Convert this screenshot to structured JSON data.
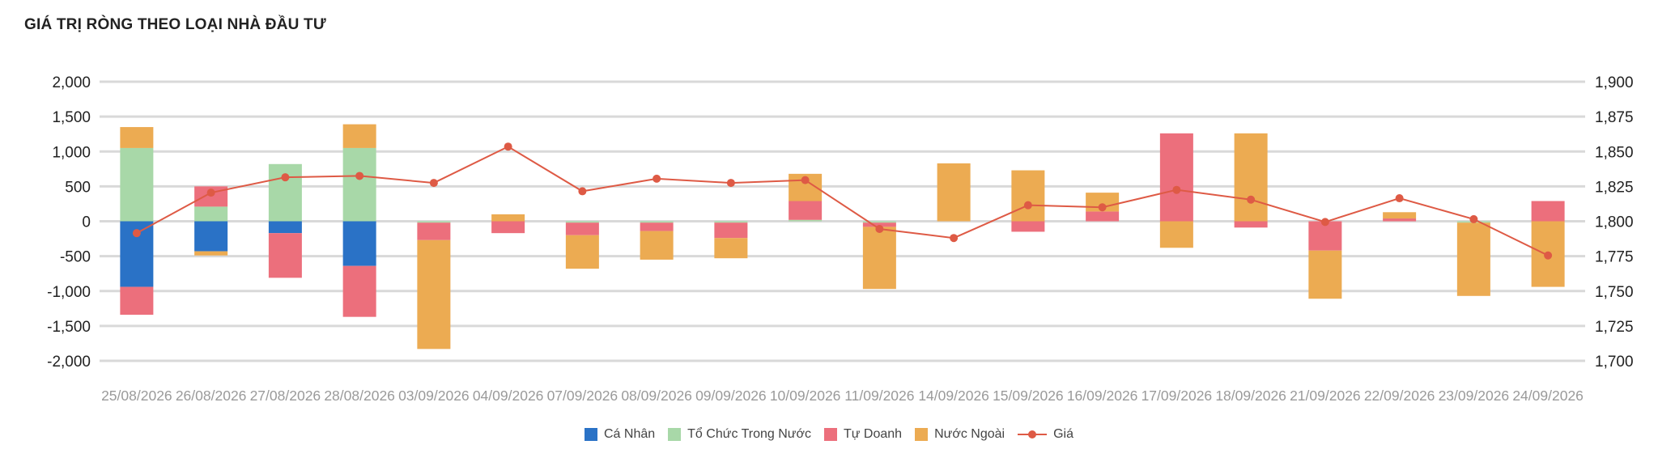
{
  "chart_data": {
    "type": "bar",
    "title": "GIÁ TRỊ RÒNG THEO LOẠI NHÀ ĐẦU TƯ",
    "categories": [
      "25/08/2026",
      "26/08/2026",
      "27/08/2026",
      "28/08/2026",
      "03/09/2026",
      "04/09/2026",
      "07/09/2026",
      "08/09/2026",
      "09/09/2026",
      "10/09/2026",
      "11/09/2026",
      "14/09/2026",
      "15/09/2026",
      "16/09/2026",
      "17/09/2026",
      "18/09/2026",
      "21/09/2026",
      "22/09/2026",
      "23/09/2026",
      "24/09/2026"
    ],
    "y_left": {
      "min": -2000,
      "max": 2000,
      "ticks": [
        "2,000",
        "1,500",
        "1,000",
        "500",
        "0",
        "-500",
        "-1,000",
        "-1,500",
        "-2,000"
      ]
    },
    "y_right": {
      "min": 1700,
      "max": 1900,
      "ticks": [
        "1,900",
        "1,875",
        "1,850",
        "1,825",
        "1,800",
        "1,775",
        "1,750",
        "1,725",
        "1,700"
      ]
    },
    "grid": true,
    "legend_position": "bottom",
    "series": [
      {
        "name": "Cá Nhân",
        "type": "bar",
        "axis": "left",
        "color": "#2a72c6",
        "values": [
          -940,
          -430,
          -170,
          -640,
          0,
          0,
          0,
          0,
          0,
          0,
          0,
          0,
          0,
          0,
          0,
          0,
          0,
          0,
          0,
          0
        ]
      },
      {
        "name": "Tổ Chức Trong Nước",
        "type": "bar",
        "axis": "left",
        "color": "#a8d8a8",
        "values": [
          1050,
          210,
          820,
          1050,
          -20,
          0,
          -20,
          -20,
          -20,
          20,
          -20,
          0,
          0,
          0,
          0,
          0,
          0,
          0,
          -20,
          0
        ]
      },
      {
        "name": "Tự Doanh",
        "type": "bar",
        "axis": "left",
        "color": "#ec6f7c",
        "values": [
          -400,
          290,
          -640,
          -730,
          -250,
          -170,
          -180,
          -120,
          -220,
          270,
          -60,
          0,
          -150,
          140,
          1260,
          -90,
          -420,
          40,
          0,
          290
        ]
      },
      {
        "name": "Nước Ngoài",
        "type": "bar",
        "axis": "left",
        "color": "#ecab52",
        "values": [
          300,
          -60,
          0,
          340,
          -1560,
          100,
          -480,
          -410,
          -290,
          390,
          -890,
          830,
          730,
          270,
          -380,
          1260,
          -690,
          90,
          -1050,
          -940
        ]
      },
      {
        "name": "Giá",
        "type": "line",
        "axis": "right",
        "color": "#de5a45",
        "values": [
          1791.5,
          1820.5,
          1831.5,
          1832.5,
          1827.5,
          1853.5,
          1821.5,
          1830.5,
          1827.5,
          1829.5,
          1794.5,
          1788.0,
          1811.5,
          1810.0,
          1822.5,
          1815.5,
          1799.5,
          1816.5,
          1801.5,
          1775.5
        ]
      }
    ]
  }
}
